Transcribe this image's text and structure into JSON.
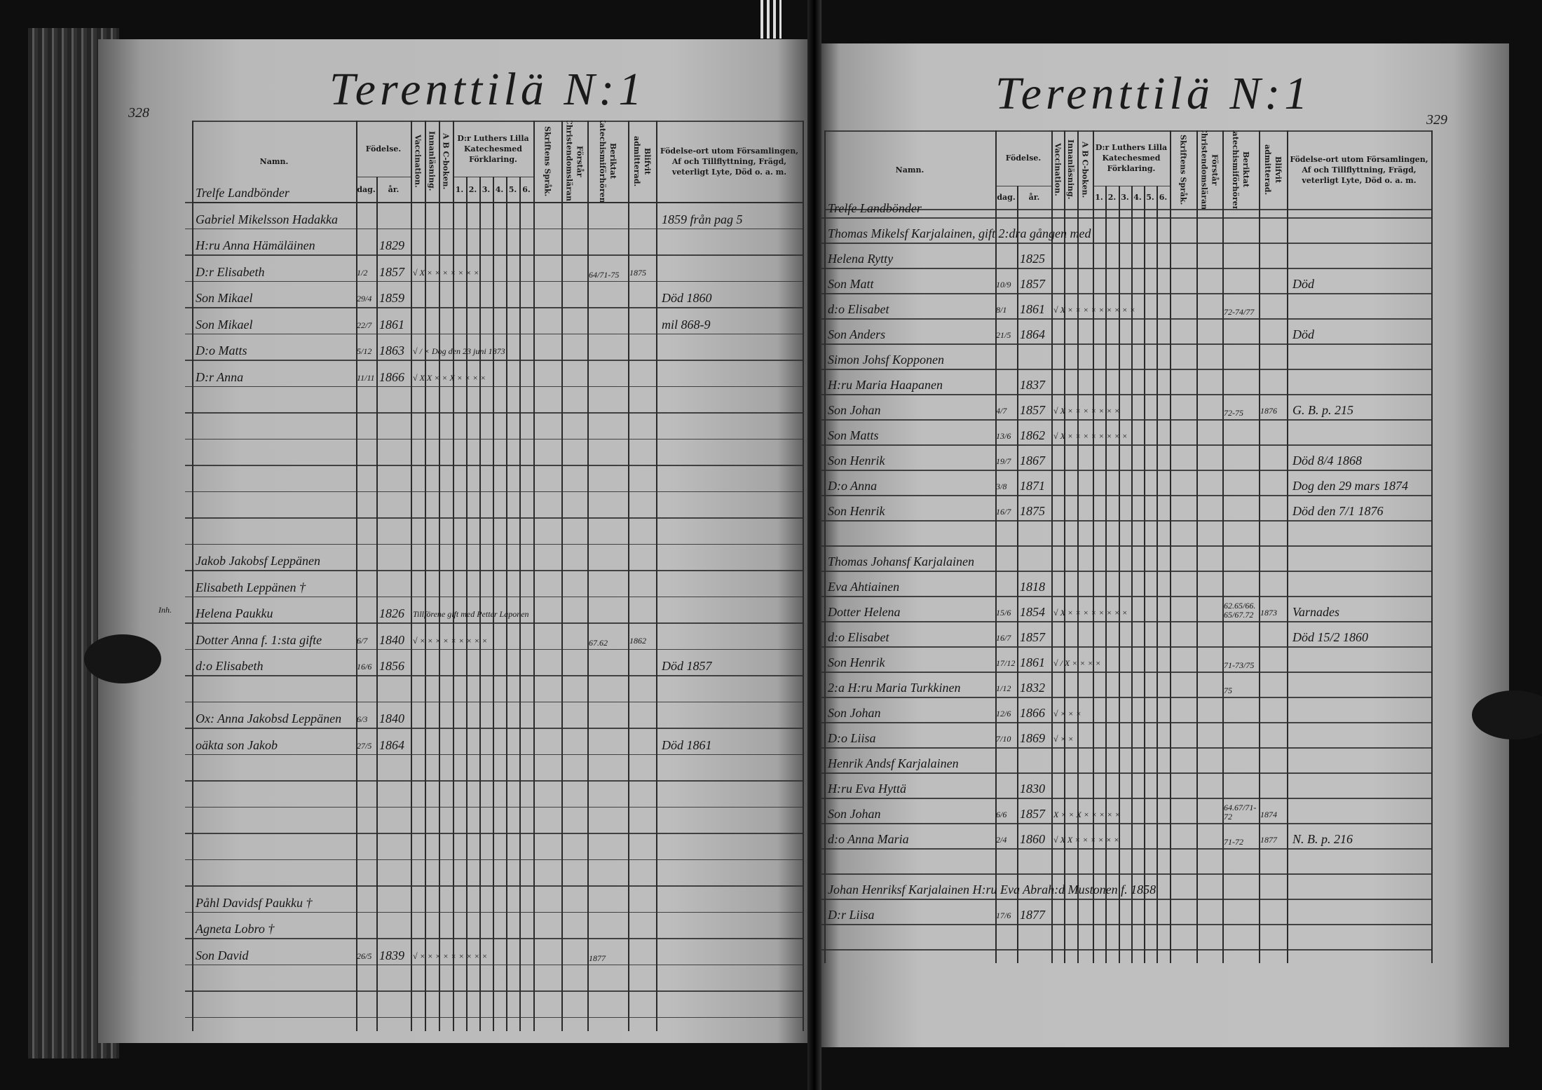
{
  "colors": {
    "paper": "#bcbcbc",
    "ink": "#151515",
    "background": "#0e0e0e"
  },
  "headers": {
    "name": "Namn.",
    "birth": "Födelse.",
    "day": "dag.",
    "year": "år.",
    "vaccination": "Vaccination.",
    "reading": "Innanläsning.",
    "abc": "A B C-boken.",
    "catechism": "D:r Luthers Lilla Katechesmed Förklaring.",
    "catechism_parts": [
      "1.",
      "2.",
      "3.",
      "4.",
      "5.",
      "6."
    ],
    "scripture": "Skriftens Språk.",
    "christianity": "Förstår Christendomsläran.",
    "examinations": "Beriktat Katechismiförhören.",
    "admitted": "Blifvit admitterad.",
    "remarks": "Födelse-ort utom Församlingen, Af och Tillflyttning, Frägd, veterligt Lyte, Död o. a. m."
  },
  "left": {
    "title": "Terenttilä N:1",
    "page_number": "328",
    "margin_note": "Inh.",
    "entries": [
      {
        "row": 0,
        "name": "Trelfe Landbönder"
      },
      {
        "row": 1,
        "name": "Gabriel Mikelsson Hadakka",
        "note": "1859 från pag 5"
      },
      {
        "row": 2,
        "name": "H:ru Anna Hämäläinen",
        "year": "1829"
      },
      {
        "row": 3,
        "name": "D:r Elisabeth",
        "day": "1/2",
        "year": "1857",
        "marks": "√ X × × × × × × ×",
        "exam": "64/71-75",
        "admitted": "1875"
      },
      {
        "row": 4,
        "name": "Son Mikael",
        "day": "29/4",
        "year": "1859",
        "note": "Död 1860"
      },
      {
        "row": 5,
        "name": "Son Mikael",
        "day": "22/7",
        "year": "1861",
        "note": "mil 868-9"
      },
      {
        "row": 6,
        "name": "D:o Matts",
        "day": "5/12",
        "year": "1863",
        "marks": "√ / × Dog den 23 juni 1873"
      },
      {
        "row": 7,
        "name": "D:r Anna",
        "day": "11/11",
        "year": "1866",
        "marks": "√ X X × × X × × × ×"
      },
      {
        "row": 14,
        "name": "Jakob Jakobsf Leppänen"
      },
      {
        "row": 15,
        "name": "Elisabeth Leppänen †"
      },
      {
        "row": 16,
        "name": "Helena Paukku",
        "year": "1826",
        "marks": "Tillförene gift med Petter Laponen"
      },
      {
        "row": 17,
        "name": "Dotter Anna f. 1:sta gifte",
        "day": "6/7",
        "year": "1840",
        "marks": "√ × × × × × × × × ×",
        "exam": "67.62",
        "admitted": "1862"
      },
      {
        "row": 18,
        "name": "d:o Elisabeth",
        "day": "16/6",
        "year": "1856",
        "note": "Död 1857"
      },
      {
        "row": 20,
        "name": "Ox: Anna Jakobsd Leppänen",
        "day": "6/3",
        "year": "1840"
      },
      {
        "row": 21,
        "name": "oäkta son Jakob",
        "day": "27/5",
        "year": "1864",
        "note": "Död 1861"
      },
      {
        "row": 27,
        "name": "Påhl Davidsf Paukku †"
      },
      {
        "row": 28,
        "name": "Agneta Lobro †"
      },
      {
        "row": 29,
        "name": "Son David",
        "day": "26/5",
        "year": "1839",
        "marks": "√ × × × × × × × × ×",
        "exam": "1877"
      }
    ]
  },
  "right": {
    "title": "Terenttilä N:1",
    "page_number": "329",
    "entries": [
      {
        "row": 0,
        "name": "Trelfe Landbönder"
      },
      {
        "row": 1,
        "name": "Thomas Mikelsf Karjalainen, gift 2:dra gången med"
      },
      {
        "row": 2,
        "name": "Helena Rytty",
        "year": "1825"
      },
      {
        "row": 3,
        "name": "Son Matt",
        "day": "10/9",
        "year": "1857",
        "note": "Död"
      },
      {
        "row": 4,
        "name": "d:o Elisabet",
        "day": "8/1",
        "year": "1861",
        "marks": "√ X × × × × × × × × ×",
        "exam": "72-74/77"
      },
      {
        "row": 5,
        "name": "Son Anders",
        "day": "21/5",
        "year": "1864",
        "note": "Död"
      },
      {
        "row": 6,
        "name": "Simon Johsf Kopponen"
      },
      {
        "row": 7,
        "name": "H:ru Maria Haapanen",
        "year": "1837"
      },
      {
        "row": 8,
        "name": "Son Johan",
        "day": "4/7",
        "year": "1857",
        "marks": "√ X × × × × × × ×",
        "exam": "72-75",
        "admitted": "1876",
        "note": "G. B. p. 215"
      },
      {
        "row": 9,
        "name": "Son Matts",
        "day": "13/6",
        "year": "1862",
        "marks": "√ X × × × × × × × ×"
      },
      {
        "row": 10,
        "name": "Son Henrik",
        "day": "19/7",
        "year": "1867",
        "note": "Död 8/4 1868"
      },
      {
        "row": 11,
        "name": "D:o Anna",
        "day": "3/8",
        "year": "1871",
        "note": "Dog den 29 mars 1874"
      },
      {
        "row": 12,
        "name": "Son Henrik",
        "day": "16/7",
        "year": "1875",
        "note": "Död den 7/1 1876"
      },
      {
        "row": 14,
        "name": "Thomas Johansf Karjalainen"
      },
      {
        "row": 15,
        "name": "Eva Ahtiainen",
        "year": "1818"
      },
      {
        "row": 16,
        "name": "Dotter Helena",
        "day": "15/6",
        "year": "1854",
        "marks": "√ X × × × × × × × ×",
        "exam": "62.65/66.65/67.72",
        "admitted": "1873",
        "note": "Varnades"
      },
      {
        "row": 17,
        "name": "d:o Elisabet",
        "day": "16/7",
        "year": "1857",
        "note": "Död 15/2 1860"
      },
      {
        "row": 18,
        "name": "Son Henrik",
        "day": "17/12",
        "year": "1861",
        "marks": "√ / X × × × ×",
        "exam": "71-73/75"
      },
      {
        "row": 19,
        "name": "2:a H:ru Maria Turkkinen",
        "day": "1/12",
        "year": "1832",
        "exam": "75"
      },
      {
        "row": 20,
        "name": "Son Johan",
        "day": "12/6",
        "year": "1866",
        "marks": "√ × × ×"
      },
      {
        "row": 21,
        "name": "D:o Liisa",
        "day": "7/10",
        "year": "1869",
        "marks": "√ × ×"
      },
      {
        "row": 22,
        "name": "Henrik Andsf Karjalainen"
      },
      {
        "row": 23,
        "name": "H:ru Eva Hyttä",
        "year": "1830"
      },
      {
        "row": 24,
        "name": "Son Johan",
        "day": "6/6",
        "year": "1857",
        "marks": "X × × X × × × × ×",
        "exam": "64.67/71-72",
        "admitted": "1874"
      },
      {
        "row": 25,
        "name": "d:o Anna Maria",
        "day": "2/4",
        "year": "1860",
        "marks": "√ X X × × × × × ×",
        "exam": "71-72",
        "admitted": "1877",
        "note": "N. B. p. 216"
      },
      {
        "row": 27,
        "name": "Johan Henriksf Karjalainen H:ru Eva Abrah:d Mustonen f. 1858"
      },
      {
        "row": 28,
        "name": "D:r Liisa",
        "day": "17/6",
        "year": "1877"
      }
    ]
  }
}
